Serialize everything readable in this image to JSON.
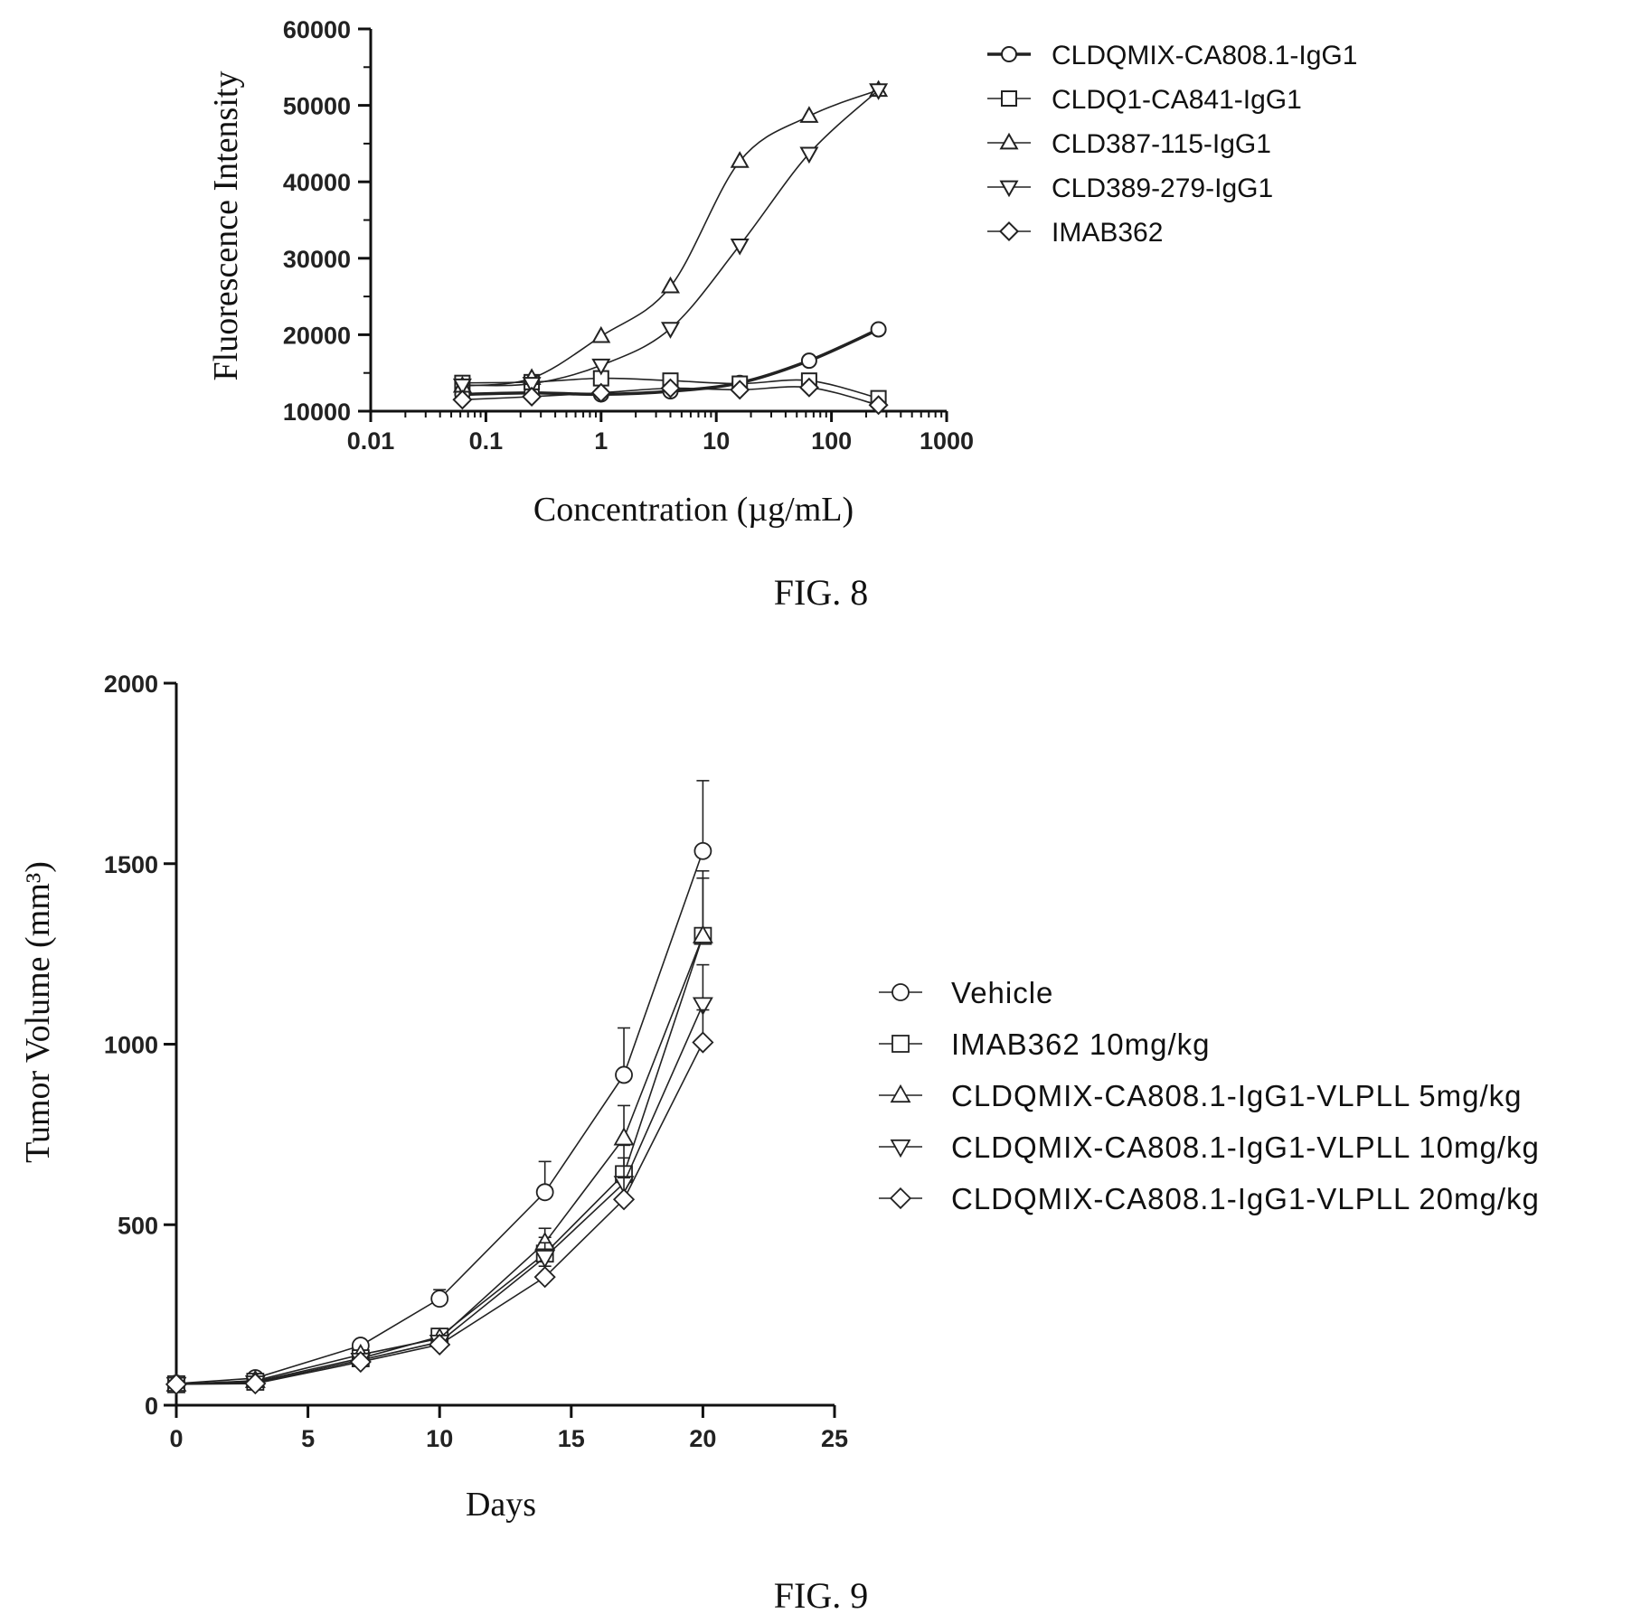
{
  "figures": {
    "fig8_caption": "FIG. 8",
    "fig9_caption": "FIG. 9"
  },
  "chart_data": [
    {
      "type": "line",
      "x_scale": "log",
      "xlabel": "Concentration (µg/mL)",
      "ylabel": "Fluorescence Intensity",
      "xlim": [
        0.01,
        1000
      ],
      "ylim": [
        10000,
        60000
      ],
      "x_ticks": [
        "0.01",
        "0.1",
        "1",
        "10",
        "100",
        "1000"
      ],
      "y_ticks": [
        "10000",
        "20000",
        "30000",
        "40000",
        "50000",
        "60000"
      ],
      "legend_position": "top-right",
      "x": [
        0.0625,
        0.25,
        1,
        4,
        16,
        64,
        256
      ],
      "series": [
        {
          "name": "CLDQMIX-CA808.1-IgG1",
          "marker": "circle",
          "bold": true,
          "values": [
            12200,
            12400,
            12200,
            12600,
            13700,
            16600,
            20700
          ]
        },
        {
          "name": "CLDQ1-CA841-IgG1",
          "marker": "square",
          "bold": false,
          "values": [
            13700,
            13800,
            14300,
            14000,
            13600,
            14000,
            11700
          ]
        },
        {
          "name": "CLD387-115-IgG1",
          "marker": "triangle-up",
          "bold": false,
          "values": [
            13300,
            14300,
            19800,
            26300,
            42700,
            48600,
            52000
          ]
        },
        {
          "name": "CLD389-279-IgG1",
          "marker": "triangle-down",
          "bold": false,
          "values": [
            13400,
            13600,
            16000,
            20800,
            31700,
            43700,
            52000
          ]
        },
        {
          "name": "IMAB362",
          "marker": "diamond",
          "bold": false,
          "values": [
            11500,
            11900,
            12400,
            13000,
            12800,
            13100,
            10800
          ]
        }
      ]
    },
    {
      "type": "line",
      "xlabel": "Days",
      "ylabel": "Tumor Volume (mm³)",
      "xlim": [
        0,
        25
      ],
      "ylim": [
        0,
        2000
      ],
      "x_ticks": [
        "0",
        "5",
        "10",
        "15",
        "20",
        "25"
      ],
      "y_ticks": [
        "0",
        "500",
        "1000",
        "1500",
        "2000"
      ],
      "legend_position": "right",
      "x": [
        0,
        3,
        7,
        10,
        14,
        17,
        20
      ],
      "series": [
        {
          "name": "Vehicle",
          "marker": "circle",
          "values": [
            60,
            75,
            165,
            295,
            590,
            915,
            1535
          ],
          "errors": [
            5,
            8,
            15,
            25,
            85,
            130,
            195
          ]
        },
        {
          "name": "IMAB362  10mg/kg",
          "marker": "square",
          "values": [
            58,
            65,
            130,
            190,
            420,
            640,
            1300
          ],
          "errors": [
            5,
            6,
            10,
            15,
            45,
            80,
            160
          ]
        },
        {
          "name": "CLDQMIX-CA808.1-IgG1-VLPLL 5mg/kg",
          "marker": "triangle-up",
          "values": [
            58,
            68,
            140,
            185,
            450,
            740,
            1300
          ],
          "errors": [
            5,
            6,
            12,
            15,
            40,
            90,
            180
          ]
        },
        {
          "name": "CLDQMIX-CA808.1-IgG1-VLPLL 10mg/kg",
          "marker": "triangle-down",
          "values": [
            58,
            62,
            125,
            175,
            410,
            615,
            1110
          ],
          "errors": [
            5,
            5,
            10,
            14,
            40,
            70,
            110
          ]
        },
        {
          "name": "CLDQMIX-CA808.1-IgG1-VLPLL 20mg/kg",
          "marker": "diamond",
          "values": [
            58,
            60,
            120,
            168,
            355,
            570,
            1005
          ],
          "errors": [
            5,
            5,
            10,
            12,
            30,
            60,
            90
          ]
        }
      ]
    }
  ]
}
